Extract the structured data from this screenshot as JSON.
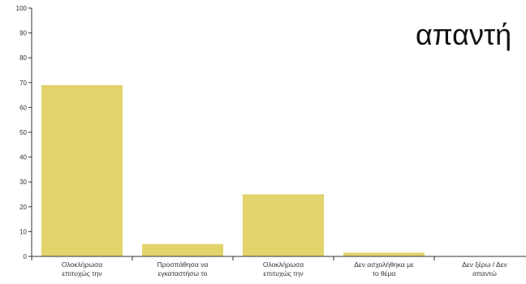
{
  "overlay_text": "απαντή",
  "chart_data": {
    "type": "bar",
    "title": "",
    "xlabel": "",
    "ylabel": "",
    "ylim": [
      0,
      100
    ],
    "yticks": [
      0,
      10,
      20,
      30,
      40,
      50,
      60,
      70,
      80,
      90,
      100
    ],
    "grid": false,
    "bar_color": "#e2d36b",
    "categories": [
      [
        "Ολοκλήρωσα",
        "επιτυχώς την"
      ],
      [
        "Προσπάθησα να",
        "εγκαταστήσω το"
      ],
      [
        "Ολοκλήρωσα",
        "επιτυχώς την"
      ],
      [
        "Δεν ασχολήθηκα με",
        "το θέμα"
      ],
      [
        "Δεν ξέρω / Δεν",
        "απαντώ"
      ]
    ],
    "values": [
      69,
      5,
      25,
      1.5,
      0
    ]
  }
}
